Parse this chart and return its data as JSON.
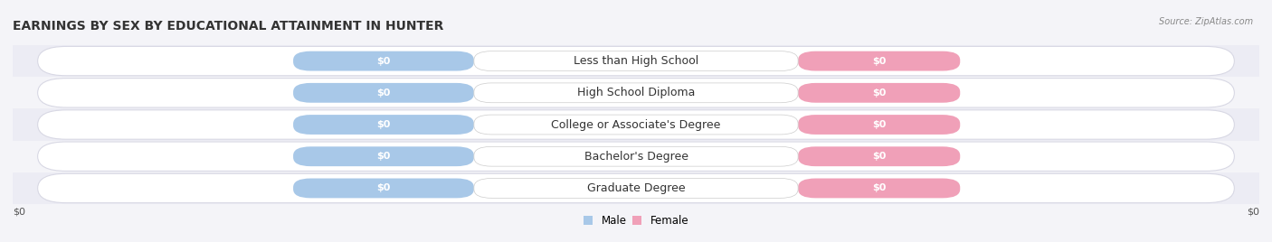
{
  "title": "EARNINGS BY SEX BY EDUCATIONAL ATTAINMENT IN HUNTER",
  "source": "Source: ZipAtlas.com",
  "categories": [
    "Less than High School",
    "High School Diploma",
    "College or Associate's Degree",
    "Bachelor's Degree",
    "Graduate Degree"
  ],
  "male_color": "#a8c8e8",
  "female_color": "#f0a0b8",
  "row_bg_color": "#e8e8f0",
  "row_pill_color": "#f0f0f8",
  "male_label": "Male",
  "female_label": "Female",
  "bar_label": "$0",
  "title_fontsize": 10,
  "label_fontsize": 9,
  "value_fontsize": 8,
  "bar_height": 0.62,
  "bg_color": "#f4f4f8"
}
